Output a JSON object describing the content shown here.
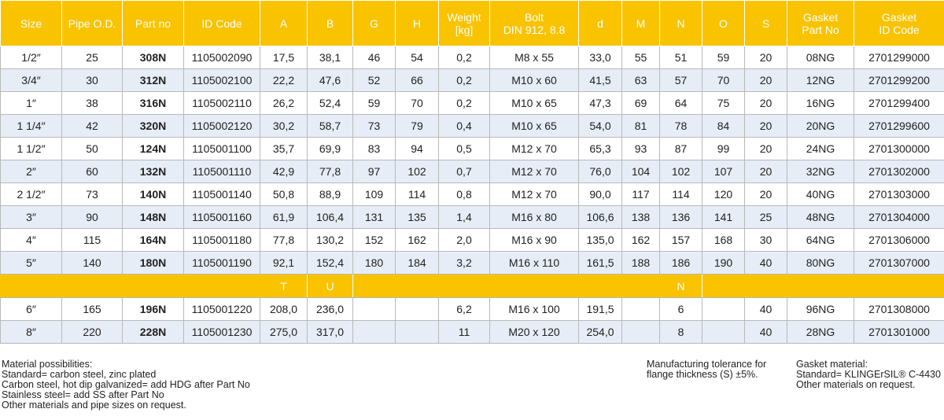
{
  "table": {
    "header": [
      "Size",
      "Pipe O.D.",
      "Part no",
      "ID Code",
      "A",
      "B",
      "G",
      "H",
      [
        "Weight",
        "[kg]"
      ],
      [
        "Bolt",
        "DIN 912, 8.8"
      ],
      "d",
      "M",
      "N",
      "O",
      "S",
      [
        "Gasket",
        "Part No"
      ],
      [
        "Gasket",
        "ID Code"
      ]
    ],
    "rows": [
      [
        "1/2″",
        "25",
        "308N",
        "1105002090",
        "17,5",
        "38,1",
        "46",
        "54",
        "0,2",
        "M8 x 55",
        "33,0",
        "55",
        "51",
        "59",
        "20",
        "08NG",
        "2701299000"
      ],
      [
        "3/4″",
        "30",
        "312N",
        "1105002100",
        "22,2",
        "47,6",
        "52",
        "66",
        "0,2",
        "M10 x 60",
        "41,5",
        "63",
        "57",
        "70",
        "20",
        "12NG",
        "2701299200"
      ],
      [
        "1″",
        "38",
        "316N",
        "1105002110",
        "26,2",
        "52,4",
        "59",
        "70",
        "0,2",
        "M10 x 65",
        "47,3",
        "69",
        "64",
        "75",
        "20",
        "16NG",
        "2701299400"
      ],
      [
        "1 1/4″",
        "42",
        "320N",
        "1105002120",
        "30,2",
        "58,7",
        "73",
        "79",
        "0,4",
        "M10 x 65",
        "54,0",
        "81",
        "78",
        "84",
        "20",
        "20NG",
        "2701299600"
      ],
      [
        "1 1/2″",
        "50",
        "124N",
        "1105001100",
        "35,7",
        "69,9",
        "83",
        "94",
        "0,5",
        "M12 x 70",
        "65,3",
        "93",
        "87",
        "99",
        "20",
        "24NG",
        "2701300000"
      ],
      [
        "2″",
        "60",
        "132N",
        "1105001110",
        "42,9",
        "77,8",
        "97",
        "102",
        "0,7",
        "M12 x 70",
        "76,0",
        "104",
        "102",
        "107",
        "20",
        "32NG",
        "2701302000"
      ],
      [
        "2 1/2″",
        "73",
        "140N",
        "1105001140",
        "50,8",
        "88,9",
        "109",
        "114",
        "0,8",
        "M12 x 70",
        "90,0",
        "117",
        "114",
        "120",
        "20",
        "40NG",
        "2701303000"
      ],
      [
        "3″",
        "90",
        "148N",
        "1105001160",
        "61,9",
        "106,4",
        "131",
        "135",
        "1,4",
        "M16 x 80",
        "106,6",
        "138",
        "136",
        "141",
        "25",
        "48NG",
        "2701304000"
      ],
      [
        "4″",
        "115",
        "164N",
        "1105001180",
        "77,8",
        "130,2",
        "152",
        "162",
        "2,0",
        "M16 x 90",
        "135,0",
        "162",
        "157",
        "168",
        "30",
        "64NG",
        "2701306000"
      ],
      [
        "5″",
        "140",
        "180N",
        "1105001190",
        "92,1",
        "152,4",
        "180",
        "184",
        "3,2",
        "M16 x 110",
        "161,5",
        "188",
        "186",
        "190",
        "40",
        "80NG",
        "2701307000"
      ]
    ],
    "subheader": [
      null,
      null,
      null,
      null,
      "T",
      "U",
      null,
      null,
      null,
      null,
      null,
      null,
      "N",
      null,
      null,
      null,
      null
    ],
    "rows2": [
      [
        "6″",
        "165",
        "196N",
        "1105001220",
        "208,0",
        "236,0",
        null,
        null,
        "6,2",
        "M16 x 100",
        "191,5",
        null,
        "6",
        null,
        "40",
        "96NG",
        "2701308000"
      ],
      [
        "8″",
        "220",
        "228N",
        "1105001230",
        "275,0",
        "317,0",
        null,
        null,
        "11",
        "M20 x 120",
        "254,0",
        null,
        "8",
        null,
        "40",
        "28NG",
        "2701301000"
      ]
    ]
  },
  "notes": {
    "material": [
      "Material possibilities:",
      "Standard= carbon steel, zinc plated",
      "Carbon steel, hot dip galvanized= add HDG after Part No",
      "Stainless steel= add SS after Part No",
      "Other materials and pipe sizes on request."
    ],
    "tolerance": [
      "Manufacturing tolerance for",
      "flange thickness (S) ±5%."
    ],
    "gasket": [
      "Gasket material:",
      "Standard= KLINGErSIL® C-4430",
      "Other materials on request."
    ]
  }
}
